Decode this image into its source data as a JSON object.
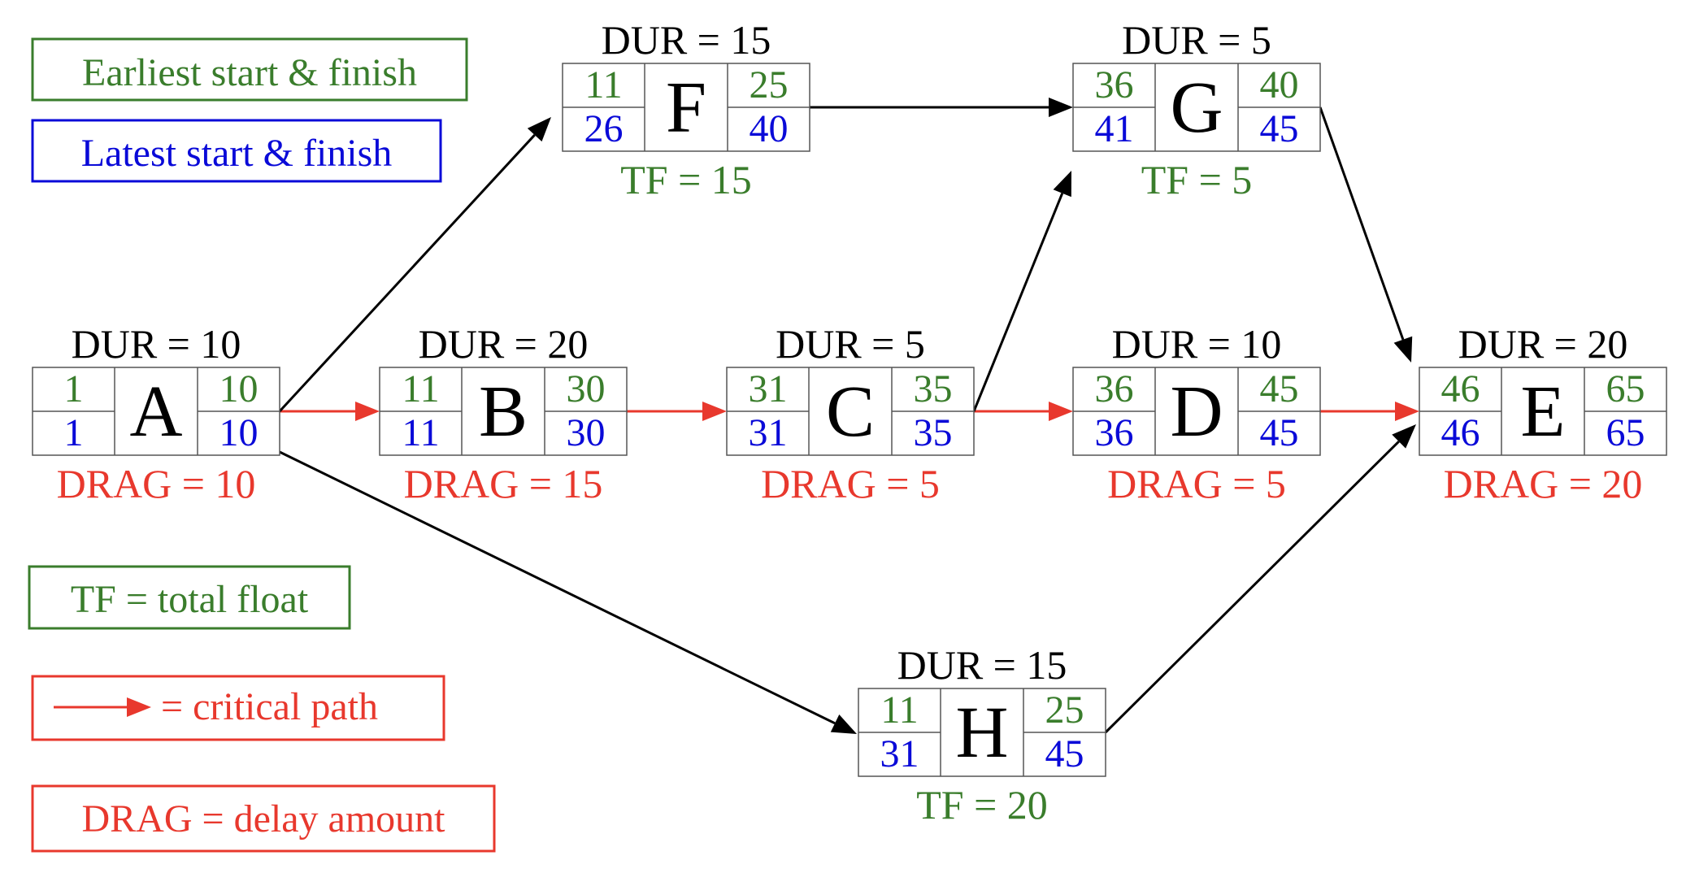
{
  "colors": {
    "green": "#3a7d2c",
    "blue": "#0a0ad8",
    "red": "#e8382d",
    "black": "#000000"
  },
  "legend": {
    "early": "Earliest start & finish",
    "late": "Latest start & finish",
    "tf": "TF = total float",
    "critical": "= critical path",
    "drag": "DRAG = delay amount"
  },
  "activities": {
    "A": {
      "label": "A",
      "dur": "DUR = 10",
      "es": "1",
      "ef": "10",
      "ls": "1",
      "lf": "10",
      "note": "DRAG = 10",
      "note_type": "drag"
    },
    "B": {
      "label": "B",
      "dur": "DUR = 20",
      "es": "11",
      "ef": "30",
      "ls": "11",
      "lf": "30",
      "note": "DRAG = 15",
      "note_type": "drag"
    },
    "C": {
      "label": "C",
      "dur": "DUR = 5",
      "es": "31",
      "ef": "35",
      "ls": "31",
      "lf": "35",
      "note": "DRAG = 5",
      "note_type": "drag"
    },
    "D": {
      "label": "D",
      "dur": "DUR = 10",
      "es": "36",
      "ef": "45",
      "ls": "36",
      "lf": "45",
      "note": "DRAG = 5",
      "note_type": "drag"
    },
    "E": {
      "label": "E",
      "dur": "DUR = 20",
      "es": "46",
      "ef": "65",
      "ls": "46",
      "lf": "65",
      "note": "DRAG = 20",
      "note_type": "drag"
    },
    "F": {
      "label": "F",
      "dur": "DUR = 15",
      "es": "11",
      "ef": "25",
      "ls": "26",
      "lf": "40",
      "note": "TF = 15",
      "note_type": "tf"
    },
    "G": {
      "label": "G",
      "dur": "DUR = 5",
      "es": "36",
      "ef": "40",
      "ls": "41",
      "lf": "45",
      "note": "TF = 5",
      "note_type": "tf"
    },
    "H": {
      "label": "H",
      "dur": "DUR = 15",
      "es": "11",
      "ef": "25",
      "ls": "31",
      "lf": "45",
      "note": "TF = 20",
      "note_type": "tf"
    }
  },
  "edges": [
    {
      "from": "A",
      "to": "B",
      "critical": true
    },
    {
      "from": "B",
      "to": "C",
      "critical": true
    },
    {
      "from": "C",
      "to": "D",
      "critical": true
    },
    {
      "from": "D",
      "to": "E",
      "critical": true
    },
    {
      "from": "A",
      "to": "F",
      "critical": false
    },
    {
      "from": "F",
      "to": "G",
      "critical": false
    },
    {
      "from": "C",
      "to": "G",
      "critical": false
    },
    {
      "from": "G",
      "to": "E",
      "critical": false
    },
    {
      "from": "A",
      "to": "H",
      "critical": false
    },
    {
      "from": "H",
      "to": "E",
      "critical": false
    }
  ]
}
